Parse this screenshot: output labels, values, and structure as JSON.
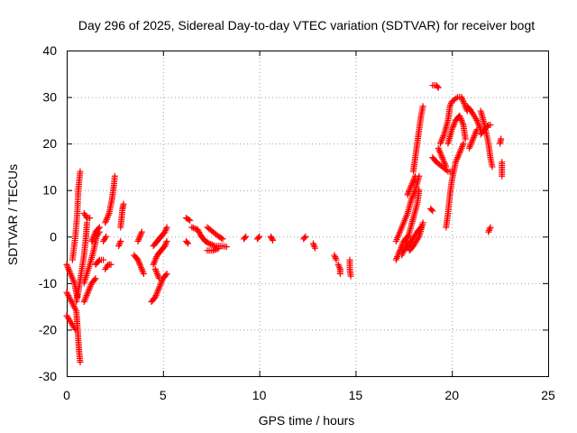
{
  "chart_data": {
    "type": "scatter",
    "title": "Day 296 of 2025, Sidereal Day-to-day VTEC variation (SDTVAR) for receiver bogt",
    "xlabel": "GPS time / hours",
    "ylabel": "SDTVAR / TECUs",
    "xlim": [
      0,
      25
    ],
    "ylim": [
      -30,
      40
    ],
    "xticks": [
      "0",
      "5",
      "10",
      "15",
      "20",
      "25"
    ],
    "yticks": [
      "-30",
      "-20",
      "-10",
      "0",
      "10",
      "20",
      "30",
      "40"
    ],
    "grid": true,
    "marker": "plus",
    "series": [
      {
        "name": "SDTVAR",
        "color": "#ff0000",
        "tracks": [
          [
            [
              0.0,
              -6
            ],
            [
              0.2,
              -8
            ],
            [
              0.4,
              -10
            ],
            [
              0.55,
              -13
            ]
          ],
          [
            [
              0.0,
              -12
            ],
            [
              0.25,
              -14
            ],
            [
              0.5,
              -16
            ],
            [
              0.55,
              -19
            ],
            [
              0.6,
              -22
            ],
            [
              0.65,
              -25
            ],
            [
              0.7,
              -27
            ]
          ],
          [
            [
              0.0,
              -17
            ],
            [
              0.15,
              -18
            ],
            [
              0.3,
              -19
            ],
            [
              0.45,
              -20
            ]
          ],
          [
            [
              0.3,
              -5
            ],
            [
              0.45,
              0
            ],
            [
              0.55,
              5
            ],
            [
              0.6,
              10
            ],
            [
              0.7,
              14
            ]
          ],
          [
            [
              0.5,
              -14
            ],
            [
              0.6,
              -12
            ],
            [
              0.75,
              -8
            ],
            [
              0.9,
              -4
            ],
            [
              1.0,
              0
            ],
            [
              1.05,
              3
            ]
          ],
          [
            [
              0.9,
              5
            ],
            [
              1.05,
              4
            ],
            [
              1.2,
              4
            ]
          ],
          [
            [
              0.9,
              -14
            ],
            [
              1.1,
              -12
            ],
            [
              1.3,
              -10
            ],
            [
              1.5,
              -9
            ]
          ],
          [
            [
              0.9,
              -10
            ],
            [
              1.2,
              -6
            ],
            [
              1.4,
              -3
            ],
            [
              1.55,
              0
            ],
            [
              1.7,
              1
            ]
          ],
          [
            [
              1.3,
              -1
            ],
            [
              1.5,
              1
            ],
            [
              1.7,
              2
            ]
          ],
          [
            [
              1.5,
              -6
            ],
            [
              1.7,
              -5
            ],
            [
              1.9,
              -5
            ]
          ],
          [
            [
              2.0,
              -7
            ],
            [
              2.15,
              -6
            ],
            [
              2.3,
              -6
            ]
          ],
          [
            [
              2.0,
              3
            ],
            [
              2.2,
              5
            ],
            [
              2.35,
              8
            ],
            [
              2.45,
              11
            ],
            [
              2.5,
              13
            ]
          ],
          [
            [
              1.9,
              -1
            ],
            [
              2.05,
              0
            ]
          ],
          [
            [
              2.8,
              2
            ],
            [
              2.85,
              4
            ],
            [
              2.9,
              6
            ],
            [
              2.95,
              7
            ]
          ],
          [
            [
              2.7,
              -2
            ],
            [
              2.8,
              -1
            ]
          ],
          [
            [
              3.5,
              -4
            ],
            [
              3.7,
              -5
            ],
            [
              3.9,
              -7
            ],
            [
              4.0,
              -8
            ]
          ],
          [
            [
              3.7,
              -1
            ],
            [
              3.8,
              0
            ],
            [
              3.9,
              1
            ]
          ],
          [
            [
              4.4,
              -14
            ],
            [
              4.6,
              -13
            ],
            [
              4.8,
              -11
            ],
            [
              5.0,
              -9
            ],
            [
              5.2,
              -8
            ]
          ],
          [
            [
              4.5,
              -6
            ],
            [
              4.7,
              -4
            ],
            [
              4.9,
              -3
            ],
            [
              5.1,
              -2
            ],
            [
              5.2,
              -1
            ]
          ],
          [
            [
              4.5,
              -2
            ],
            [
              4.7,
              -1
            ],
            [
              4.9,
              0
            ],
            [
              5.1,
              1
            ],
            [
              5.2,
              2
            ]
          ],
          [
            [
              4.6,
              -7
            ],
            [
              4.7,
              -8
            ],
            [
              4.8,
              -9
            ]
          ],
          [
            [
              6.2,
              -1
            ],
            [
              6.3,
              -1.5
            ]
          ],
          [
            [
              6.2,
              4
            ],
            [
              6.4,
              3.5
            ]
          ],
          [
            [
              6.5,
              2
            ],
            [
              6.8,
              1.5
            ],
            [
              7.0,
              0
            ],
            [
              7.2,
              -1
            ],
            [
              7.4,
              -1.5
            ],
            [
              7.7,
              -2
            ],
            [
              8.0,
              -2
            ],
            [
              8.3,
              -2.2
            ]
          ],
          [
            [
              7.3,
              2
            ],
            [
              7.6,
              1
            ],
            [
              7.9,
              0
            ],
            [
              8.1,
              -0.5
            ]
          ],
          [
            [
              7.3,
              -3
            ],
            [
              7.6,
              -3
            ],
            [
              7.9,
              -2.5
            ]
          ],
          [
            [
              9.2,
              -0.5
            ],
            [
              9.3,
              0
            ]
          ],
          [
            [
              9.9,
              -0.5
            ],
            [
              10.0,
              0
            ]
          ],
          [
            [
              10.6,
              0
            ],
            [
              10.7,
              -0.8
            ]
          ],
          [
            [
              12.3,
              -0.5
            ],
            [
              12.4,
              0
            ]
          ],
          [
            [
              12.8,
              -1.5
            ],
            [
              12.9,
              -2.5
            ]
          ],
          [
            [
              13.9,
              -4
            ],
            [
              14.0,
              -5
            ]
          ],
          [
            [
              14.1,
              -6
            ],
            [
              14.2,
              -7
            ],
            [
              14.2,
              -8
            ]
          ],
          [
            [
              14.7,
              -5
            ],
            [
              14.7,
              -7
            ],
            [
              14.75,
              -8.5
            ]
          ],
          [
            [
              17.1,
              -5
            ],
            [
              17.3,
              -3
            ],
            [
              17.5,
              -1
            ],
            [
              17.7,
              0
            ]
          ],
          [
            [
              17.1,
              -1
            ],
            [
              17.4,
              2
            ],
            [
              17.7,
              5
            ],
            [
              17.9,
              8
            ],
            [
              18.1,
              10
            ],
            [
              18.3,
              13
            ]
          ],
          [
            [
              17.4,
              -4
            ],
            [
              17.6,
              -2
            ],
            [
              17.8,
              1
            ],
            [
              18.0,
              4
            ],
            [
              18.2,
              7
            ],
            [
              18.3,
              10
            ]
          ],
          [
            [
              17.5,
              -3
            ],
            [
              17.7,
              -2
            ],
            [
              17.9,
              -1
            ],
            [
              18.2,
              1
            ],
            [
              18.4,
              2
            ]
          ],
          [
            [
              17.8,
              -3
            ],
            [
              18.0,
              -2
            ],
            [
              18.3,
              0
            ],
            [
              18.5,
              3
            ]
          ],
          [
            [
              18.0,
              14
            ],
            [
              18.1,
              17
            ],
            [
              18.2,
              20
            ],
            [
              18.3,
              23
            ],
            [
              18.4,
              26
            ],
            [
              18.5,
              28
            ]
          ],
          [
            [
              17.7,
              9
            ],
            [
              17.9,
              11
            ],
            [
              18.1,
              13
            ]
          ],
          [
            [
              18.9,
              6
            ],
            [
              19.0,
              5.5
            ]
          ],
          [
            [
              19.0,
              17
            ],
            [
              19.2,
              16
            ],
            [
              19.5,
              15
            ],
            [
              19.8,
              14
            ],
            [
              20.0,
              14
            ]
          ],
          [
            [
              19.0,
              32.5
            ],
            [
              19.2,
              32.5
            ],
            [
              19.3,
              32
            ]
          ],
          [
            [
              19.3,
              19
            ],
            [
              19.5,
              17
            ],
            [
              19.7,
              15
            ]
          ],
          [
            [
              19.4,
              20
            ],
            [
              19.6,
              22
            ],
            [
              19.8,
              25
            ],
            [
              19.9,
              28
            ],
            [
              20.0,
              29
            ],
            [
              20.3,
              30
            ],
            [
              20.5,
              30
            ],
            [
              20.6,
              29
            ],
            [
              20.8,
              27
            ]
          ],
          [
            [
              19.7,
              2
            ],
            [
              19.8,
              5
            ],
            [
              19.9,
              9
            ],
            [
              20.0,
              12
            ],
            [
              20.2,
              16
            ],
            [
              20.4,
              18
            ],
            [
              20.6,
              20
            ]
          ],
          [
            [
              19.8,
              20
            ],
            [
              20.0,
              23
            ],
            [
              20.2,
              25
            ],
            [
              20.4,
              26
            ],
            [
              20.6,
              24
            ],
            [
              20.7,
              21
            ]
          ],
          [
            [
              20.8,
              28
            ],
            [
              21.0,
              27
            ],
            [
              21.3,
              25
            ],
            [
              21.5,
              23
            ]
          ],
          [
            [
              20.9,
              19
            ],
            [
              21.1,
              21
            ],
            [
              21.3,
              23
            ]
          ],
          [
            [
              21.5,
              27
            ],
            [
              21.7,
              24
            ],
            [
              21.9,
              20
            ],
            [
              22.0,
              17
            ],
            [
              22.1,
              15
            ]
          ],
          [
            [
              21.5,
              22
            ],
            [
              21.7,
              23
            ],
            [
              21.9,
              24
            ],
            [
              22.0,
              24
            ]
          ],
          [
            [
              21.9,
              1
            ],
            [
              22.0,
              2
            ]
          ],
          [
            [
              22.5,
              20
            ],
            [
              22.55,
              21
            ]
          ],
          [
            [
              22.6,
              16
            ],
            [
              22.6,
              13
            ]
          ]
        ]
      }
    ]
  }
}
